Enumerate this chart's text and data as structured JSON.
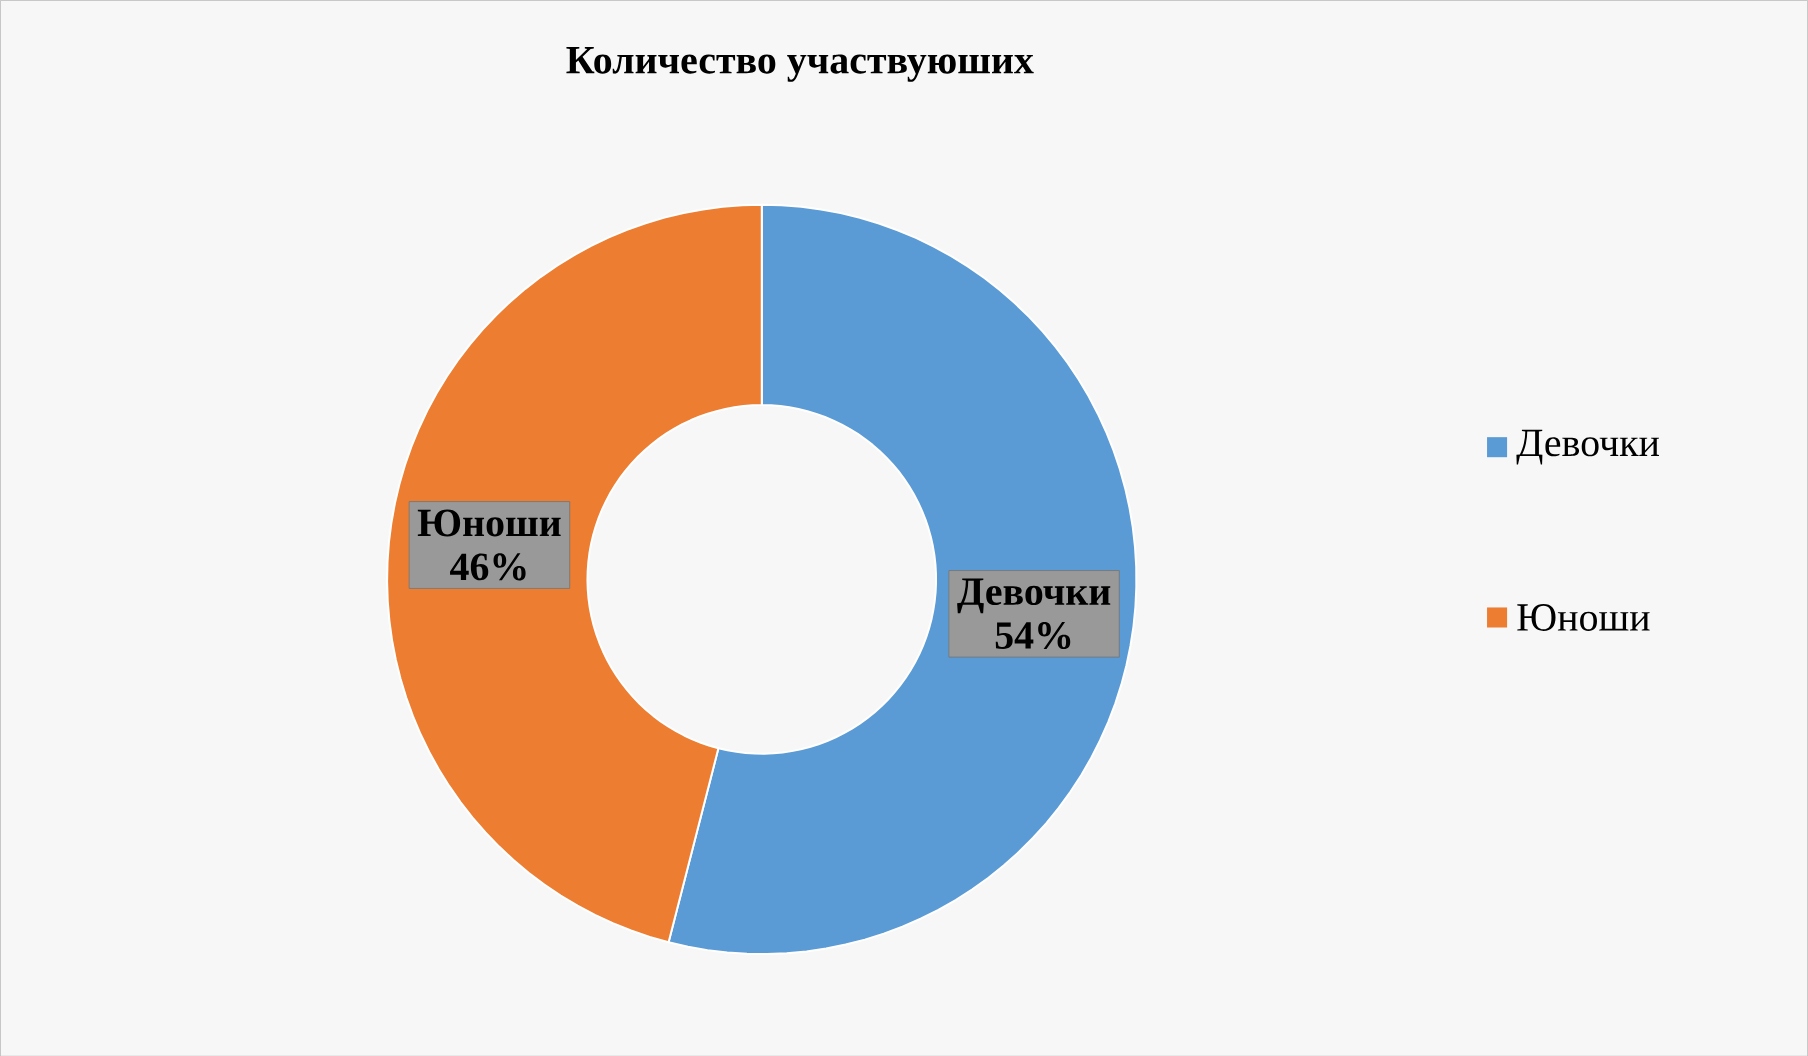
{
  "chart_data": {
    "type": "donut",
    "title": "Количество участвуюших",
    "categories": [
      "Девочки",
      "Юноши"
    ],
    "values": [
      54,
      46
    ],
    "colors": [
      "#5b9bd5",
      "#ed7d31"
    ],
    "value_labels": [
      "54%",
      "46%"
    ],
    "legend": "right"
  }
}
